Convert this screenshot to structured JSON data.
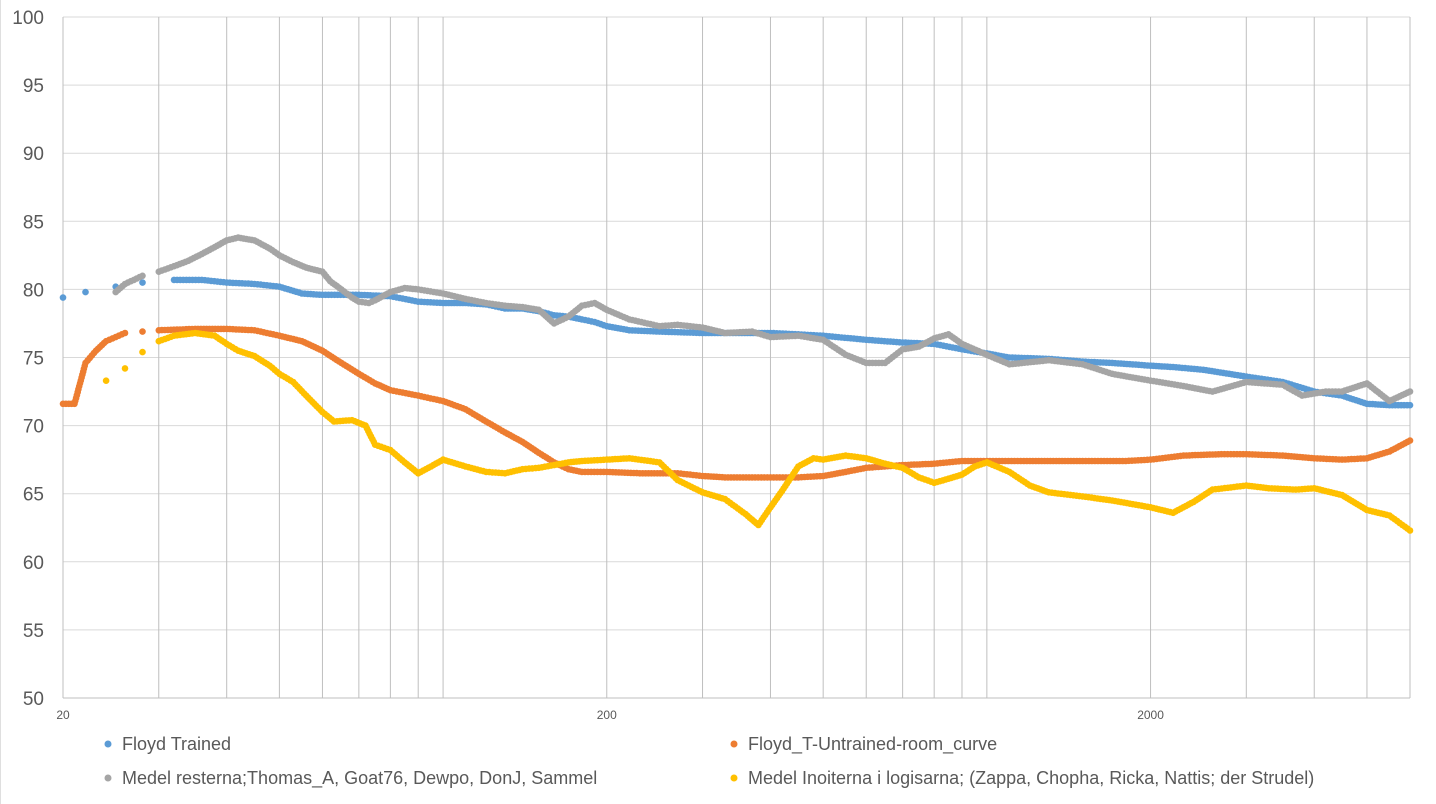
{
  "chart_data": {
    "type": "scatter",
    "title": "",
    "xlabel": "",
    "ylabel": "",
    "x_scale": "log",
    "xlim": [
      20,
      6000
    ],
    "ylim": [
      50,
      100
    ],
    "y_ticks": [
      "50",
      "55",
      "60",
      "65",
      "70",
      "75",
      "80",
      "85",
      "90",
      "95",
      "100"
    ],
    "x_tick_labels": [
      {
        "x": 20,
        "label": "20"
      },
      {
        "x": 200,
        "label": "200"
      },
      {
        "x": 2000,
        "label": "2000"
      }
    ],
    "grid": {
      "horizontal": true,
      "vertical_log_minor": true
    },
    "legend": "bottom",
    "series": [
      {
        "name": "Floyd Trained",
        "color": "#5B9BD5",
        "points": [
          [
            20,
            79.4
          ],
          [
            22,
            79.8
          ],
          [
            25,
            80.2
          ],
          [
            28,
            80.5
          ],
          [
            32,
            80.7
          ],
          [
            36,
            80.7
          ],
          [
            40,
            80.5
          ],
          [
            45,
            80.4
          ],
          [
            50,
            80.2
          ],
          [
            55,
            79.7
          ],
          [
            60,
            79.6
          ],
          [
            70,
            79.6
          ],
          [
            80,
            79.5
          ],
          [
            90,
            79.1
          ],
          [
            100,
            79.0
          ],
          [
            110,
            79.0
          ],
          [
            120,
            78.9
          ],
          [
            130,
            78.6
          ],
          [
            140,
            78.6
          ],
          [
            150,
            78.4
          ],
          [
            160,
            78.1
          ],
          [
            170,
            78.0
          ],
          [
            180,
            77.8
          ],
          [
            190,
            77.6
          ],
          [
            200,
            77.3
          ],
          [
            220,
            77.0
          ],
          [
            250,
            76.9
          ],
          [
            300,
            76.8
          ],
          [
            350,
            76.8
          ],
          [
            400,
            76.8
          ],
          [
            450,
            76.7
          ],
          [
            500,
            76.6
          ],
          [
            600,
            76.3
          ],
          [
            700,
            76.1
          ],
          [
            800,
            76.0
          ],
          [
            900,
            75.6
          ],
          [
            1000,
            75.3
          ],
          [
            1100,
            75.0
          ],
          [
            1300,
            74.9
          ],
          [
            1500,
            74.7
          ],
          [
            1700,
            74.6
          ],
          [
            2000,
            74.4
          ],
          [
            2200,
            74.3
          ],
          [
            2500,
            74.1
          ],
          [
            3000,
            73.6
          ],
          [
            3500,
            73.2
          ],
          [
            4000,
            72.5
          ],
          [
            4500,
            72.2
          ],
          [
            5000,
            71.6
          ],
          [
            5500,
            71.5
          ],
          [
            6000,
            71.5
          ]
        ]
      },
      {
        "name": "Floyd_T-Untrained-room_curve",
        "color": "#ED7D31",
        "points": [
          [
            20,
            71.6
          ],
          [
            21,
            71.6
          ],
          [
            22,
            74.6
          ],
          [
            23,
            75.5
          ],
          [
            24,
            76.2
          ],
          [
            25,
            76.5
          ],
          [
            26,
            76.8
          ],
          [
            28,
            76.9
          ],
          [
            30,
            77.0
          ],
          [
            35,
            77.1
          ],
          [
            40,
            77.1
          ],
          [
            45,
            77.0
          ],
          [
            50,
            76.6
          ],
          [
            55,
            76.2
          ],
          [
            60,
            75.5
          ],
          [
            65,
            74.6
          ],
          [
            70,
            73.8
          ],
          [
            75,
            73.1
          ],
          [
            80,
            72.6
          ],
          [
            90,
            72.2
          ],
          [
            100,
            71.8
          ],
          [
            110,
            71.2
          ],
          [
            120,
            70.3
          ],
          [
            130,
            69.5
          ],
          [
            140,
            68.8
          ],
          [
            150,
            68.0
          ],
          [
            160,
            67.3
          ],
          [
            170,
            66.8
          ],
          [
            180,
            66.6
          ],
          [
            200,
            66.6
          ],
          [
            230,
            66.5
          ],
          [
            270,
            66.5
          ],
          [
            300,
            66.3
          ],
          [
            330,
            66.2
          ],
          [
            370,
            66.2
          ],
          [
            400,
            66.2
          ],
          [
            450,
            66.2
          ],
          [
            500,
            66.3
          ],
          [
            550,
            66.6
          ],
          [
            600,
            66.9
          ],
          [
            700,
            67.1
          ],
          [
            800,
            67.2
          ],
          [
            900,
            67.4
          ],
          [
            1000,
            67.4
          ],
          [
            1200,
            67.4
          ],
          [
            1500,
            67.4
          ],
          [
            1800,
            67.4
          ],
          [
            2000,
            67.5
          ],
          [
            2300,
            67.8
          ],
          [
            2700,
            67.9
          ],
          [
            3000,
            67.9
          ],
          [
            3500,
            67.8
          ],
          [
            4000,
            67.6
          ],
          [
            4500,
            67.5
          ],
          [
            5000,
            67.6
          ],
          [
            5500,
            68.1
          ],
          [
            6000,
            68.9
          ]
        ]
      },
      {
        "name": "Medel  resterna;Thomas_A, Goat76, Dewpo, DonJ, Sammel",
        "color": "#A5A5A5",
        "points": [
          [
            25,
            79.8
          ],
          [
            26,
            80.4
          ],
          [
            27,
            80.7
          ],
          [
            28,
            81.0
          ],
          [
            30,
            81.3
          ],
          [
            32,
            81.7
          ],
          [
            34,
            82.1
          ],
          [
            36,
            82.6
          ],
          [
            38,
            83.1
          ],
          [
            40,
            83.6
          ],
          [
            42,
            83.8
          ],
          [
            45,
            83.6
          ],
          [
            48,
            83.0
          ],
          [
            50,
            82.5
          ],
          [
            53,
            82.0
          ],
          [
            56,
            81.6
          ],
          [
            60,
            81.3
          ],
          [
            62,
            80.6
          ],
          [
            65,
            80.0
          ],
          [
            68,
            79.4
          ],
          [
            70,
            79.1
          ],
          [
            73,
            79.0
          ],
          [
            75,
            79.2
          ],
          [
            80,
            79.8
          ],
          [
            85,
            80.1
          ],
          [
            90,
            80.0
          ],
          [
            100,
            79.7
          ],
          [
            110,
            79.3
          ],
          [
            120,
            79.0
          ],
          [
            130,
            78.8
          ],
          [
            140,
            78.7
          ],
          [
            150,
            78.5
          ],
          [
            160,
            77.5
          ],
          [
            170,
            78.0
          ],
          [
            180,
            78.8
          ],
          [
            190,
            79.0
          ],
          [
            200,
            78.5
          ],
          [
            220,
            77.8
          ],
          [
            250,
            77.3
          ],
          [
            270,
            77.4
          ],
          [
            300,
            77.2
          ],
          [
            330,
            76.8
          ],
          [
            370,
            76.9
          ],
          [
            400,
            76.5
          ],
          [
            450,
            76.6
          ],
          [
            500,
            76.3
          ],
          [
            550,
            75.2
          ],
          [
            600,
            74.6
          ],
          [
            650,
            74.6
          ],
          [
            700,
            75.6
          ],
          [
            750,
            75.8
          ],
          [
            800,
            76.4
          ],
          [
            850,
            76.7
          ],
          [
            900,
            76.0
          ],
          [
            1000,
            75.2
          ],
          [
            1100,
            74.5
          ],
          [
            1300,
            74.8
          ],
          [
            1500,
            74.5
          ],
          [
            1700,
            73.8
          ],
          [
            2000,
            73.3
          ],
          [
            2300,
            72.9
          ],
          [
            2600,
            72.5
          ],
          [
            3000,
            73.2
          ],
          [
            3500,
            73.0
          ],
          [
            3800,
            72.2
          ],
          [
            4200,
            72.5
          ],
          [
            4500,
            72.5
          ],
          [
            5000,
            73.1
          ],
          [
            5500,
            71.8
          ],
          [
            6000,
            72.5
          ]
        ]
      },
      {
        "name": "Medel Inoiterna i logisarna; (Zappa, Chopha, Ricka, Nattis; der Strudel)",
        "color": "#FFC000",
        "points": [
          [
            24,
            73.3
          ],
          [
            26,
            74.2
          ],
          [
            28,
            75.4
          ],
          [
            30,
            76.2
          ],
          [
            32,
            76.6
          ],
          [
            35,
            76.8
          ],
          [
            38,
            76.6
          ],
          [
            40,
            76.0
          ],
          [
            42,
            75.5
          ],
          [
            45,
            75.1
          ],
          [
            48,
            74.4
          ],
          [
            50,
            73.8
          ],
          [
            53,
            73.2
          ],
          [
            56,
            72.2
          ],
          [
            60,
            71.0
          ],
          [
            63,
            70.3
          ],
          [
            68,
            70.4
          ],
          [
            72,
            70.0
          ],
          [
            75,
            68.6
          ],
          [
            80,
            68.2
          ],
          [
            85,
            67.3
          ],
          [
            90,
            66.5
          ],
          [
            95,
            67.0
          ],
          [
            100,
            67.5
          ],
          [
            110,
            67.0
          ],
          [
            120,
            66.6
          ],
          [
            130,
            66.5
          ],
          [
            140,
            66.8
          ],
          [
            150,
            66.9
          ],
          [
            160,
            67.1
          ],
          [
            170,
            67.3
          ],
          [
            180,
            67.4
          ],
          [
            200,
            67.5
          ],
          [
            220,
            67.6
          ],
          [
            250,
            67.3
          ],
          [
            270,
            66.0
          ],
          [
            300,
            65.1
          ],
          [
            330,
            64.6
          ],
          [
            360,
            63.5
          ],
          [
            380,
            62.7
          ],
          [
            400,
            64.0
          ],
          [
            420,
            65.2
          ],
          [
            450,
            67.0
          ],
          [
            480,
            67.6
          ],
          [
            500,
            67.5
          ],
          [
            550,
            67.8
          ],
          [
            600,
            67.6
          ],
          [
            650,
            67.2
          ],
          [
            700,
            66.9
          ],
          [
            750,
            66.2
          ],
          [
            800,
            65.8
          ],
          [
            850,
            66.1
          ],
          [
            900,
            66.4
          ],
          [
            950,
            67.0
          ],
          [
            1000,
            67.3
          ],
          [
            1100,
            66.6
          ],
          [
            1200,
            65.6
          ],
          [
            1300,
            65.1
          ],
          [
            1500,
            64.8
          ],
          [
            1700,
            64.5
          ],
          [
            2000,
            64.0
          ],
          [
            2200,
            63.6
          ],
          [
            2400,
            64.4
          ],
          [
            2600,
            65.3
          ],
          [
            3000,
            65.6
          ],
          [
            3300,
            65.4
          ],
          [
            3700,
            65.3
          ],
          [
            4000,
            65.4
          ],
          [
            4500,
            64.9
          ],
          [
            5000,
            63.8
          ],
          [
            5500,
            63.4
          ],
          [
            6000,
            62.3
          ]
        ]
      }
    ]
  }
}
